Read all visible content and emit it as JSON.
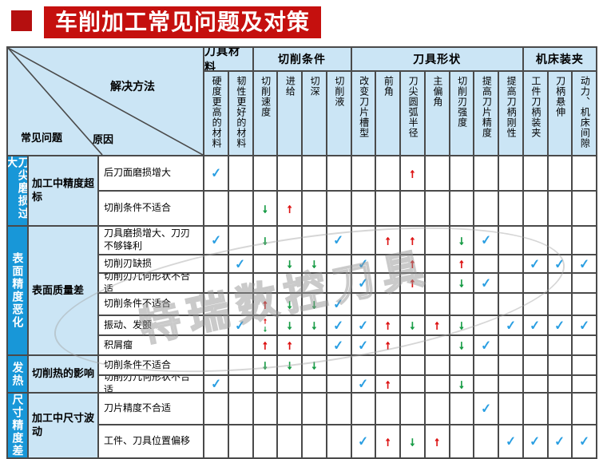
{
  "title": {
    "text": "车削加工常见问题及对策"
  },
  "colors": {
    "accent_red": "#c5100e",
    "accent_red_dark": "#b50f0f",
    "header_blue": "#cbe5f5",
    "category_blue": "#1897d8",
    "check_blue": "#2b9fe2",
    "arrow_red": "#dd1414",
    "arrow_green": "#189c46"
  },
  "watermark": {
    "text": "特瑞数控刀具"
  },
  "table": {
    "corner": {
      "method": "解决方法",
      "problem": "常见问题",
      "cause": "原因"
    },
    "column_groups": [
      {
        "label": "刀具材料",
        "span": 2
      },
      {
        "label": "切削条件",
        "span": 4
      },
      {
        "label": "刀具形状",
        "span": 7
      },
      {
        "label": "机床装夹",
        "span": 3
      }
    ],
    "columns": [
      "硬度更高的材料",
      "韧性更好的材料",
      "切削速度",
      "进给",
      "切深",
      "切削液",
      "改变刀片槽型",
      "前角",
      "刀尖圆弧半径",
      "主偏角",
      "切削刃强度",
      "提高刀片精度",
      "提高刀柄刚性",
      "工件刀柄装夹",
      "刀柄悬伸",
      "动力、机床间隙"
    ],
    "legend": {
      "check_icon": "✓",
      "up_arrow_icon": "↑",
      "down_arrow_icon": "↓"
    },
    "row_groups": [
      {
        "category": "刀尖磨损过大",
        "problem": "加工中精度超标",
        "rows": [
          {
            "cause": "后刀面磨损增大",
            "marks": {
              "1": "check",
              "9": "up"
            }
          },
          {
            "cause": "切削条件不适合",
            "marks": {
              "3": "down",
              "4": "up"
            }
          }
        ]
      },
      {
        "category": "表面精度恶化",
        "problem": "表面质量差",
        "rows": [
          {
            "cause": "刀具磨损增大、刀刃不够锋利",
            "marks": {
              "1": "check",
              "3": "down",
              "6": "check",
              "8": "up",
              "9": "up",
              "11": "down",
              "12": "check"
            }
          },
          {
            "cause": "切削刃缺损",
            "marks": {
              "2": "check",
              "4": "down",
              "5": "down",
              "7": "check",
              "9": "up",
              "11": "up",
              "14": "check",
              "15": "check",
              "16": "check"
            }
          },
          {
            "cause": "切削刃几何形状不合适",
            "marks": {
              "7": "check",
              "9": "up",
              "11": "down",
              "12": "check"
            }
          },
          {
            "cause": "切削条件不适合",
            "marks": {
              "3": "up",
              "4": "down",
              "5": "down",
              "6": "check"
            }
          },
          {
            "cause": "振动、发颤",
            "marks": {
              "2": "check",
              "3": "updown",
              "4": "down",
              "5": "down",
              "6": "check",
              "7": "check",
              "8": "up",
              "9": "down",
              "10": "up",
              "11": "down",
              "13": "check",
              "14": "check",
              "15": "check",
              "16": "check"
            }
          },
          {
            "cause": "积屑瘤",
            "marks": {
              "3": "up",
              "4": "up",
              "6": "check",
              "7": "check",
              "8": "up",
              "11": "down",
              "12": "check"
            }
          }
        ]
      },
      {
        "category": "发热",
        "problem": "切削热的影响",
        "rows": [
          {
            "cause": "切削条件不适合",
            "marks": {
              "3": "down",
              "4": "down",
              "5": "down"
            }
          },
          {
            "cause": "切削刃几何形状不合适",
            "marks": {
              "1": "check",
              "7": "check",
              "8": "up",
              "11": "down"
            }
          }
        ]
      },
      {
        "category": "尺寸精度差",
        "problem": "加工中尺寸波动",
        "rows": [
          {
            "cause": "刀片精度不合适",
            "marks": {
              "12": "check"
            }
          },
          {
            "cause": "工件、刀具位置偏移",
            "marks": {
              "7": "check",
              "8": "up",
              "9": "down",
              "10": "up",
              "13": "check",
              "14": "check",
              "15": "check",
              "16": "check"
            }
          }
        ]
      }
    ]
  }
}
